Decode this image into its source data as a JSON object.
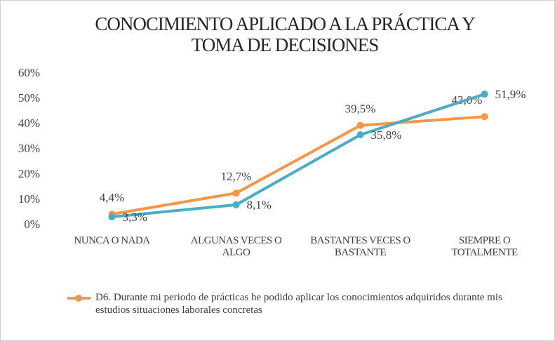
{
  "chart_data": {
    "type": "line",
    "title": [
      "CONOCIMIENTO APLICADO A LA PRÁCTICA Y",
      "TOMA DE DECISIONES"
    ],
    "categories": [
      "NUNCA O NADA",
      "ALGUNAS VECES O ALGO",
      "BASTANTES VECES O BASTANTE",
      "SIEMPRE O TOTALMENTE"
    ],
    "series": [
      {
        "name": "D6. Durante mi periodo de prácticas he podido aplicar los conocimientos adquiridos durante mis estudios  situaciones laborales concretas",
        "color": "#f79646",
        "values": [
          4.4,
          12.7,
          39.5,
          43.0
        ],
        "value_labels": [
          "4,4%",
          "12,7%",
          "39,5%",
          "43,0%"
        ]
      },
      {
        "color": "#4bacc6",
        "values": [
          3.3,
          8.1,
          35.8,
          51.9
        ],
        "value_labels": [
          "3,3%",
          "8,1%",
          "35,8%",
          "51,9%"
        ]
      }
    ],
    "ylim": [
      0,
      60
    ],
    "yticks": [
      {
        "value": 0,
        "label": "0%"
      },
      {
        "value": 10,
        "label": "10%"
      },
      {
        "value": 20,
        "label": "20%"
      },
      {
        "value": 30,
        "label": "30%"
      },
      {
        "value": 40,
        "label": "40%"
      },
      {
        "value": 50,
        "label": "50%"
      },
      {
        "value": 60,
        "label": "60%"
      }
    ],
    "grid": false,
    "legend": "bottom"
  }
}
